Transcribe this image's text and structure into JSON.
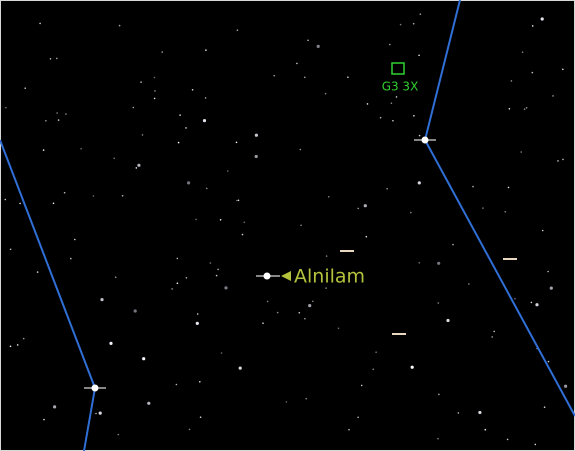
{
  "labels": {
    "star": "Alnilam",
    "object": "G3 3X"
  }
}
